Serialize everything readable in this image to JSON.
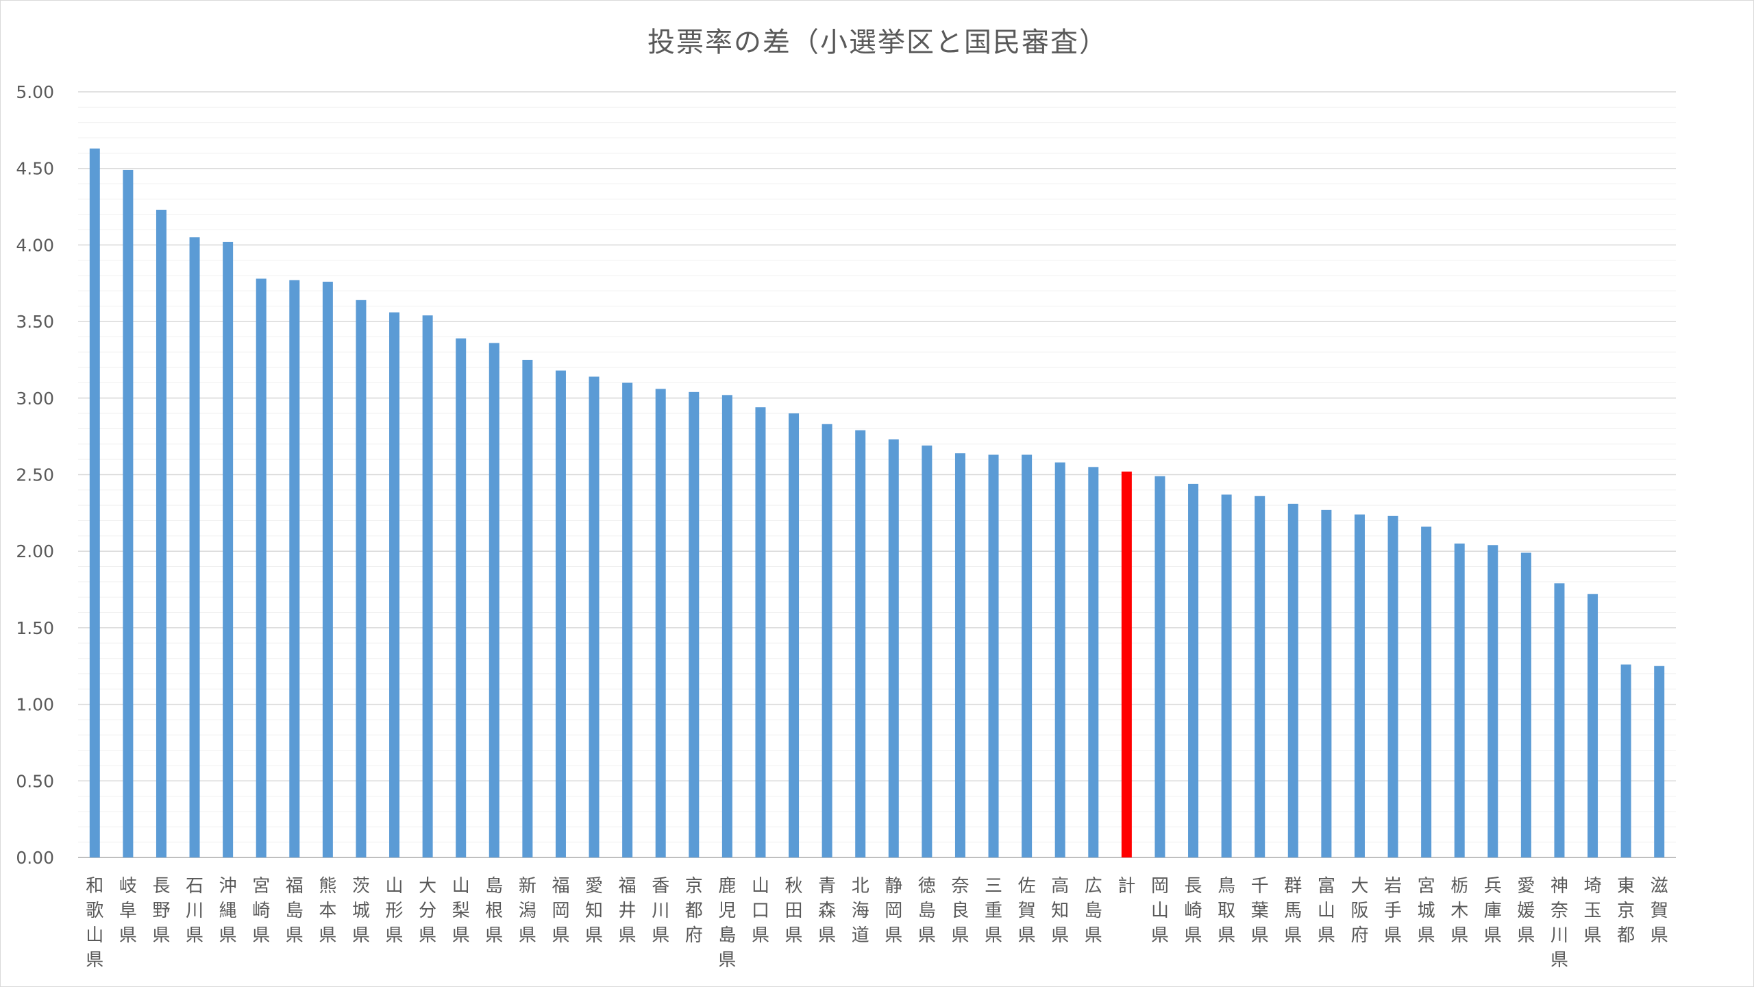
{
  "chart_data": {
    "type": "bar",
    "title": "投票率の差（小選挙区と国民審査）",
    "xlabel": "",
    "ylabel": "",
    "ylim": [
      0,
      5
    ],
    "y_ticks": [
      "0.00",
      "0.50",
      "1.00",
      "1.50",
      "2.00",
      "2.50",
      "3.00",
      "3.50",
      "4.00",
      "4.50",
      "5.00"
    ],
    "grid": true,
    "legend": "none",
    "colors": {
      "bar": "#5b9bd5",
      "highlight": "#ff0000",
      "grid": "#d9d9d9",
      "minor_grid": "#f0f0f0",
      "text": "#595959"
    },
    "highlight_category": "計",
    "categories": [
      "和歌山県",
      "岐阜県",
      "長野県",
      "石川県",
      "沖縄県",
      "宮崎県",
      "福島県",
      "熊本県",
      "茨城県",
      "山形県",
      "大分県",
      "山梨県",
      "島根県",
      "新潟県",
      "福岡県",
      "愛知県",
      "福井県",
      "香川県",
      "京都府",
      "鹿児島県",
      "山口県",
      "秋田県",
      "青森県",
      "北海道",
      "静岡県",
      "徳島県",
      "奈良県",
      "三重県",
      "佐賀県",
      "高知県",
      "広島県",
      "計",
      "岡山県",
      "長崎県",
      "鳥取県",
      "千葉県",
      "群馬県",
      "富山県",
      "大阪府",
      "岩手県",
      "宮城県",
      "栃木県",
      "兵庫県",
      "愛媛県",
      "神奈川県",
      "埼玉県",
      "東京都",
      "滋賀県"
    ],
    "values": [
      4.63,
      4.49,
      4.23,
      4.05,
      4.02,
      3.78,
      3.77,
      3.76,
      3.64,
      3.56,
      3.54,
      3.39,
      3.36,
      3.25,
      3.18,
      3.14,
      3.1,
      3.06,
      3.04,
      3.02,
      2.94,
      2.9,
      2.83,
      2.79,
      2.73,
      2.69,
      2.64,
      2.63,
      2.63,
      2.58,
      2.55,
      2.52,
      2.49,
      2.44,
      2.37,
      2.36,
      2.31,
      2.27,
      2.24,
      2.23,
      2.16,
      2.05,
      2.04,
      1.99,
      1.79,
      1.72,
      1.26,
      1.25
    ]
  }
}
